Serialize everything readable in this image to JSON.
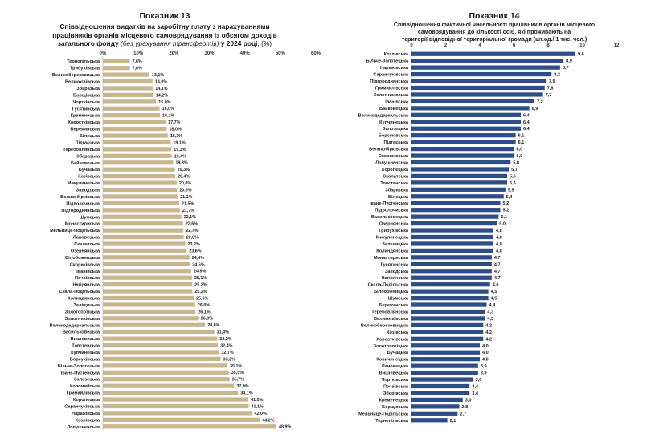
{
  "chart_data": [
    {
      "type": "bar",
      "orientation": "horizontal",
      "panel_label": "Показник 13",
      "title_lines": [
        "Співвідношення видатків на заробітну плату з нарахуваннями",
        "працівників органів місцевого самоврядування із обсягом доходів",
        "загального фонду"
      ],
      "title_suffix_italic": "(без урахування трансфертів)",
      "title_suffix": " у 2024 році",
      "title_unit": ", (%)",
      "xlim": [
        0,
        60
      ],
      "xticks": [
        "0%",
        "10%",
        "20%",
        "30%",
        "40%",
        "50%",
        "60%"
      ],
      "bar_color": "#c9b68e",
      "label_suffix": "%",
      "categories": [
        "Тернопільська",
        "Трибухівська",
        "Великоберезовицька",
        "Великогаївська",
        "Збаразька",
        "Борщівська",
        "Чортківська",
        "Гусятинська",
        "Кременецька",
        "Хоростківська",
        "Бережанська",
        "Білецька",
        "Підгаєцька",
        "Теребовлянська",
        "Збаразька",
        "Байковецька",
        "Бучацька",
        "Козівська",
        "Микулинецька",
        "Заводська",
        "Великобірківська",
        "Підволочиська",
        "Підгороднянська",
        "Шумська",
        "Монастириська",
        "Мельнице-Подільська",
        "Лановецька",
        "Скалатська",
        "Озернянська",
        "Білобожницька",
        "Скориківська",
        "Іванівська",
        "Почаївська",
        "Нагірянська",
        "Скала-Подільська",
        "Колиндянська",
        "Заліщицька",
        "Золотопотіцька",
        "Золотниківська",
        "Великодедеркальська",
        "Васильковецька",
        "Вишнівецька",
        "Товстенська",
        "Купчинецька",
        "Борсуківська",
        "Більче-Золотецька",
        "Іване-Пустенська",
        "Залозецька",
        "Коломийська",
        "Гримайлівська",
        "Коропецька",
        "Саранчуківська",
        "Наражівська",
        "Козлівська",
        "Лопушненська"
      ],
      "values": [
        7.6,
        7.6,
        13.1,
        14.0,
        14.1,
        14.2,
        15.0,
        16.0,
        16.1,
        17.7,
        18.0,
        18.3,
        19.1,
        19.3,
        19.4,
        19.8,
        20.3,
        20.4,
        20.8,
        20.9,
        21.1,
        21.5,
        21.7,
        22.1,
        22.6,
        22.7,
        22.8,
        23.2,
        23.6,
        24.4,
        24.5,
        24.9,
        25.1,
        25.2,
        25.2,
        25.6,
        26.0,
        26.1,
        26.9,
        28.8,
        31.4,
        32.2,
        32.4,
        32.7,
        33.2,
        35.1,
        35.5,
        35.7,
        37.0,
        38.1,
        41.0,
        41.1,
        42.0,
        44.2,
        48.9
      ]
    },
    {
      "type": "bar",
      "orientation": "horizontal",
      "panel_label": "Показник 14",
      "title_lines": [
        "Співвідношення фактичної чисельності працівників органів місцевого",
        "самоврядування до кількості осіб, які проживають на",
        "території відповідної територіальної громади"
      ],
      "title_suffix": " (шт.од./ 1 тис. чол.)",
      "xlim": [
        0,
        12
      ],
      "xticks": [
        "0",
        "2",
        "4",
        "6",
        "8",
        "10",
        "12"
      ],
      "bar_color": "#2e4c87",
      "categories": [
        "Козлівська",
        "Більче-Золотецька",
        "Наражівська",
        "Саранчуківська",
        "Підгороднянська",
        "Гримайлівська",
        "Золотниківська",
        "Іванівська",
        "Байковецька",
        "Великодедеркальська",
        "Купчинецька",
        "Залозецька",
        "Борсуківська",
        "Підгаєцька",
        "Великобірківська",
        "Скориківська",
        "Лопушненська",
        "Коропецька",
        "Скалатська",
        "Товстенська",
        "Збаразька",
        "Білецька",
        "Іване-Пустенська",
        "Підволочиська",
        "Васильковецька",
        "Озернянська",
        "Трибухівська",
        "Микулинецька",
        "Заліщицька",
        "Колиндянська",
        "Монастириська",
        "Гусятинська",
        "Заводська",
        "Нагірянська",
        "Скала-Подільська",
        "Білобожницька",
        "Шумська",
        "Бережанська",
        "Теребовлянська",
        "Великогаївська",
        "Великоберезовицька",
        "Козівська",
        "Хоростківська",
        "Золотопотіцька",
        "Бучацька",
        "Копичинецька",
        "Лановецька",
        "Вишнівецька",
        "Чортківська",
        "Почаївська",
        "Зборівська",
        "Кременецька",
        "Борщівська",
        "Мельнице-Подільська",
        "Тернопільська"
      ],
      "values": [
        9.6,
        8.9,
        8.7,
        8.2,
        7.9,
        7.8,
        7.7,
        7.2,
        6.9,
        6.4,
        6.4,
        6.4,
        6.1,
        6.1,
        6.0,
        6.0,
        5.8,
        5.7,
        5.6,
        5.6,
        5.5,
        5.4,
        5.2,
        5.2,
        5.1,
        5.0,
        4.8,
        4.8,
        4.8,
        4.8,
        4.7,
        4.7,
        4.7,
        4.7,
        4.6,
        4.5,
        4.5,
        4.4,
        4.3,
        4.3,
        4.2,
        4.2,
        4.2,
        4.0,
        4.0,
        4.0,
        3.9,
        3.9,
        3.6,
        3.4,
        3.4,
        3.0,
        2.8,
        2.7,
        2.1
      ]
    }
  ]
}
